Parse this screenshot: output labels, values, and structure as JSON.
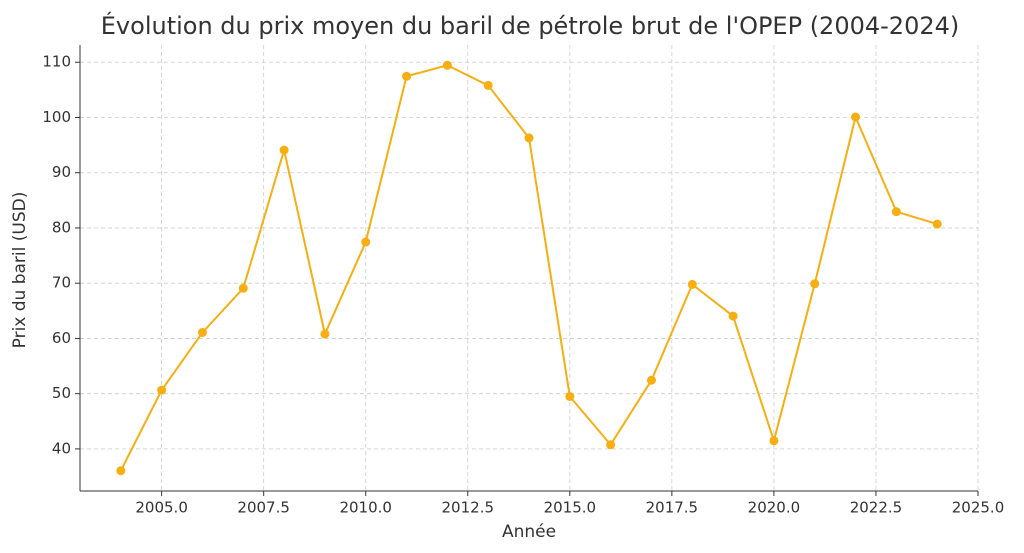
{
  "chart_data": {
    "type": "line",
    "title": "Évolution du prix moyen du baril de pétrole brut de l'OPEP (2004-2024)",
    "x_label": "Année",
    "y_label": "Prix du baril (USD)",
    "x": [
      2004,
      2005,
      2006,
      2007,
      2008,
      2009,
      2010,
      2011,
      2012,
      2013,
      2014,
      2015,
      2016,
      2017,
      2018,
      2019,
      2020,
      2021,
      2022,
      2023,
      2024
    ],
    "series": [
      {
        "color": "#f7ae12",
        "values": [
          36.05,
          50.64,
          61.08,
          69.08,
          94.1,
          60.8,
          77.45,
          107.46,
          109.45,
          105.8,
          96.3,
          49.49,
          40.76,
          52.43,
          69.78,
          64.04,
          41.47,
          69.89,
          100.08,
          82.95,
          80.7
        ]
      }
    ],
    "xlim": [
      2003,
      2025
    ],
    "ylim": [
      32.38,
      113.12
    ],
    "xticks": [
      {
        "value": 2005,
        "label": "2005.0"
      },
      {
        "value": 2007.5,
        "label": "2007.5"
      },
      {
        "value": 2010,
        "label": "2010.0"
      },
      {
        "value": 2012.5,
        "label": "2012.5"
      },
      {
        "value": 2015,
        "label": "2015.0"
      },
      {
        "value": 2017.5,
        "label": "2017.5"
      },
      {
        "value": 2020,
        "label": "2020.0"
      },
      {
        "value": 2022.5,
        "label": "2022.5"
      },
      {
        "value": 2025,
        "label": "2025.0"
      }
    ],
    "yticks": [
      40,
      50,
      60,
      70,
      80,
      90,
      100,
      110
    ],
    "grid": true
  }
}
